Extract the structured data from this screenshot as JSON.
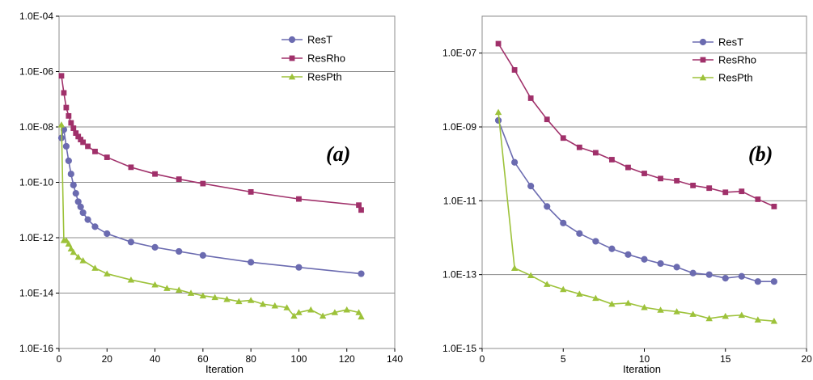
{
  "chart_data": [
    {
      "type": "line",
      "panel_label": "(a)",
      "xlabel": "Iteration",
      "ylabel": "",
      "x_scale": "linear",
      "y_scale": "log",
      "xlim": [
        0,
        140
      ],
      "ylim": [
        1e-16,
        0.0001
      ],
      "x_ticks": [
        0,
        20,
        40,
        60,
        80,
        100,
        120,
        140
      ],
      "x_tick_labels": [
        "0",
        "20",
        "40",
        "60",
        "80",
        "100",
        "120",
        "140"
      ],
      "y_ticks": [
        1e-16,
        1e-14,
        1e-12,
        1e-10,
        1e-08,
        1e-06,
        0.0001
      ],
      "y_tick_labels": [
        "1.0E-16",
        "1.0E-14",
        "1.0E-12",
        "1.0E-10",
        "1.0E-08",
        "1.0E-06",
        "1.0E-04"
      ],
      "grid": "horizontal major",
      "legend_position": "top-right",
      "series": [
        {
          "name": "ResT",
          "color": "#6B6BB0",
          "marker": "circle",
          "x": [
            1,
            2,
            3,
            4,
            5,
            6,
            7,
            8,
            9,
            10,
            12,
            15,
            20,
            30,
            40,
            50,
            60,
            80,
            100,
            126
          ],
          "y": [
            4e-09,
            8e-09,
            2e-09,
            6e-10,
            2e-10,
            8e-11,
            4e-11,
            2e-11,
            1.3e-11,
            8e-12,
            4.5e-12,
            2.5e-12,
            1.4e-12,
            7e-13,
            4.5e-13,
            3.2e-13,
            2.3e-13,
            1.3e-13,
            8.5e-14,
            5e-14
          ]
        },
        {
          "name": "ResRho",
          "color": "#A0306A",
          "marker": "square",
          "x": [
            1,
            2,
            3,
            4,
            5,
            6,
            7,
            8,
            9,
            10,
            12,
            15,
            20,
            30,
            40,
            50,
            60,
            80,
            100,
            125,
            126
          ],
          "y": [
            7e-07,
            1.7e-07,
            5e-08,
            2.5e-08,
            1.4e-08,
            9e-09,
            6e-09,
            4.5e-09,
            3.5e-09,
            2.8e-09,
            2e-09,
            1.3e-09,
            8e-10,
            3.5e-10,
            2e-10,
            1.3e-10,
            9e-11,
            4.5e-11,
            2.5e-11,
            1.5e-11,
            1e-11
          ]
        },
        {
          "name": "ResPth",
          "color": "#9DC23A",
          "marker": "triangle",
          "x": [
            1,
            2,
            3,
            4,
            5,
            6,
            8,
            10,
            15,
            20,
            30,
            40,
            45,
            50,
            55,
            60,
            65,
            70,
            75,
            80,
            85,
            90,
            95,
            98,
            100,
            105,
            110,
            115,
            120,
            125,
            126
          ],
          "y": [
            1.2e-08,
            8e-13,
            8e-13,
            6e-13,
            4e-13,
            3e-13,
            2e-13,
            1.5e-13,
            8e-14,
            5e-14,
            3e-14,
            2e-14,
            1.5e-14,
            1.3e-14,
            1e-14,
            8e-15,
            7e-15,
            6e-15,
            5e-15,
            5.5e-15,
            4e-15,
            3.5e-15,
            3e-15,
            1.5e-15,
            2e-15,
            2.5e-15,
            1.5e-15,
            2e-15,
            2.5e-15,
            2e-15,
            1.4e-15
          ]
        }
      ]
    },
    {
      "type": "line",
      "panel_label": "(b)",
      "xlabel": "Iteration",
      "ylabel": "",
      "x_scale": "linear",
      "y_scale": "log",
      "xlim": [
        0,
        20
      ],
      "ylim": [
        1e-15,
        1e-06
      ],
      "x_ticks": [
        0,
        5,
        10,
        15,
        20
      ],
      "x_tick_labels": [
        "0",
        "5",
        "10",
        "15",
        "20"
      ],
      "y_ticks": [
        1e-15,
        1e-13,
        1e-11,
        1e-09,
        1e-07
      ],
      "y_tick_labels": [
        "1.0E-15",
        "1.0E-13",
        "1.0E-11",
        "1.0E-09",
        "1.0E-07"
      ],
      "grid": "horizontal major",
      "legend_position": "top-right",
      "series": [
        {
          "name": "ResT",
          "color": "#6B6BB0",
          "marker": "circle",
          "x": [
            1,
            2,
            3,
            4,
            5,
            6,
            7,
            8,
            9,
            10,
            11,
            12,
            13,
            14,
            15,
            16,
            17,
            18
          ],
          "y": [
            1.5e-09,
            1.1e-10,
            2.5e-11,
            7e-12,
            2.5e-12,
            1.3e-12,
            8e-13,
            5e-13,
            3.5e-13,
            2.6e-13,
            2e-13,
            1.6e-13,
            1.1e-13,
            1e-13,
            8e-14,
            9e-14,
            6.5e-14,
            6.5e-14
          ]
        },
        {
          "name": "ResRho",
          "color": "#A0306A",
          "marker": "square",
          "x": [
            1,
            2,
            3,
            4,
            5,
            6,
            7,
            8,
            9,
            10,
            11,
            12,
            13,
            14,
            15,
            16,
            17,
            18
          ],
          "y": [
            1.8e-07,
            3.5e-08,
            6e-09,
            1.6e-09,
            5e-10,
            2.8e-10,
            2e-10,
            1.3e-10,
            8e-11,
            5.5e-11,
            4e-11,
            3.5e-11,
            2.6e-11,
            2.2e-11,
            1.7e-11,
            1.8e-11,
            1.1e-11,
            7e-12
          ]
        },
        {
          "name": "ResPth",
          "color": "#9DC23A",
          "marker": "triangle",
          "x": [
            1,
            2,
            3,
            4,
            5,
            6,
            7,
            8,
            9,
            10,
            11,
            12,
            13,
            14,
            15,
            16,
            17,
            18
          ],
          "y": [
            2.5e-09,
            1.5e-13,
            9.5e-14,
            5.5e-14,
            4e-14,
            3e-14,
            2.3e-14,
            1.6e-14,
            1.7e-14,
            1.3e-14,
            1.1e-14,
            1e-14,
            8.5e-15,
            6.5e-15,
            7.5e-15,
            8e-15,
            6e-15,
            5.5e-15
          ]
        }
      ]
    }
  ]
}
